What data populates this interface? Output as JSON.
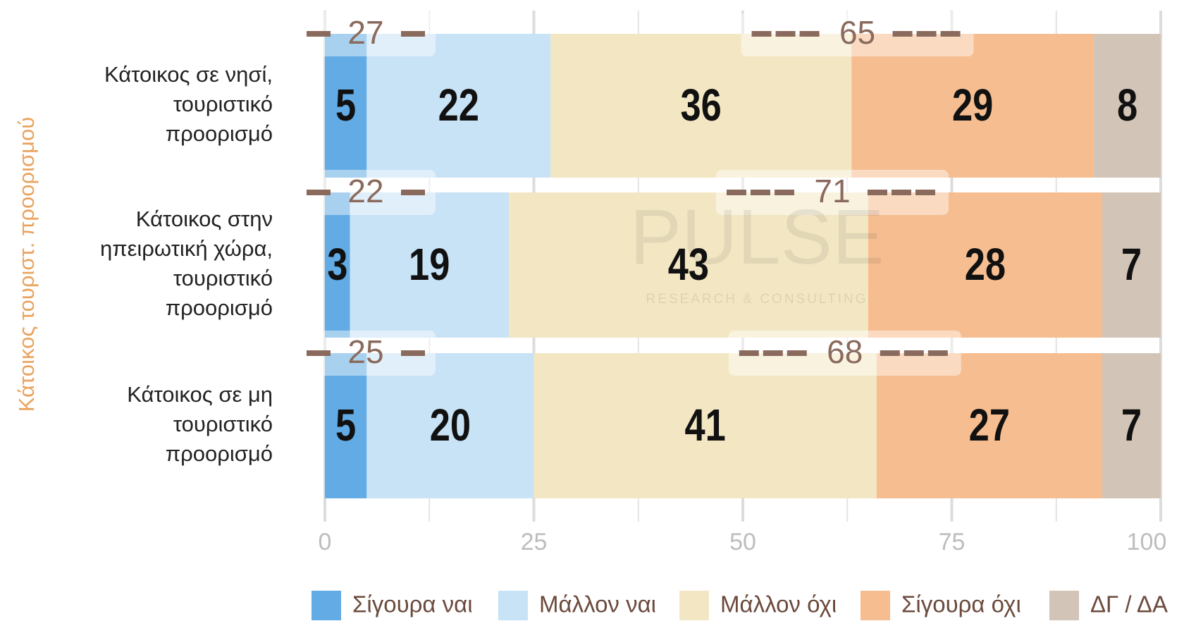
{
  "chart_data": {
    "type": "stacked_bar_horizontal",
    "y_axis_title": "Κάτοικος τουριστ. προορισμού",
    "categories": [
      "Κάτοικος σε νησί, τουριστικό προορισμό",
      "Κάτοικος στην ηπειρωτική χώρα, τουριστικό προορισμό",
      "Κάτοικος σε μη τουριστικό προορισμό"
    ],
    "series": [
      {
        "name": "Σίγουρα ναι",
        "color": "#62abe4",
        "values": [
          5,
          3,
          5
        ]
      },
      {
        "name": "Μάλλον ναι",
        "color": "#c8e2f6",
        "values": [
          22,
          19,
          20
        ]
      },
      {
        "name": "Μάλλον όχι",
        "color": "#f3e7c3",
        "values": [
          36,
          43,
          41
        ]
      },
      {
        "name": "Σίγουρα όχι",
        "color": "#f6bd90",
        "values": [
          29,
          28,
          27
        ]
      },
      {
        "name": "ΔΓ / ΔΑ",
        "color": "#d2c5b7",
        "values": [
          8,
          7,
          7
        ]
      }
    ],
    "yes_totals": [
      27,
      22,
      25
    ],
    "no_totals": [
      65,
      71,
      68
    ],
    "xlim": [
      0,
      100
    ],
    "xticks": [
      0,
      25,
      50,
      75,
      100
    ],
    "xminorticks": [
      12.5,
      37.5,
      62.5,
      87.5
    ],
    "grid": true,
    "legend": "bottom",
    "watermark": {
      "title": "PULSE",
      "subtitle": "RESEARCH & CONSULTING"
    }
  }
}
